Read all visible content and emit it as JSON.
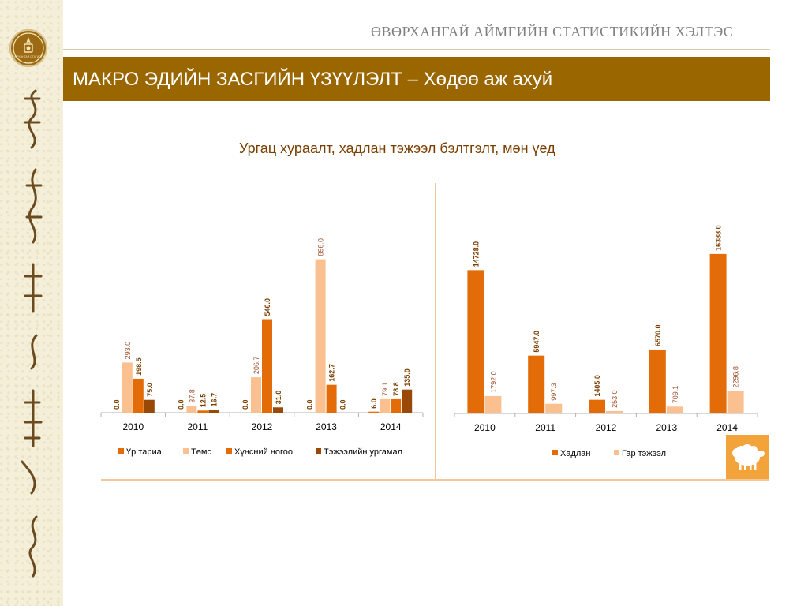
{
  "header": {
    "org_name": "ӨВӨРХАНГАЙ АЙМГИЙН СТАТИСТИКИЙН ХЭЛТЭС",
    "logo_text": "ӨВӨРХАНГАЙ СТАТИСТИК"
  },
  "title": "МАКРО ЭДИЙН ЗАСГИЙН ҮЗҮҮЛЭЛТ – Хөдөө аж ахуй",
  "chart_title": "Ургац хураалт, хадлан тэжээл бэлтгэлт, мөн үед",
  "colors": {
    "title_bar": "#996600",
    "chart_title": "#7a3e00",
    "accent": "#f2a33a"
  },
  "icons": [
    "emblem-icon",
    "sheep-icon"
  ],
  "chart_data": [
    {
      "type": "bar",
      "categories": [
        "2010",
        "2011",
        "2012",
        "2013",
        "2014"
      ],
      "series": [
        {
          "name": "Үр тариа",
          "color": "#e36c09",
          "values": [
            0.0,
            0.0,
            0.0,
            0.0,
            6.0
          ],
          "labels": [
            "0.0",
            "0.0",
            "0.0",
            "0.0",
            "6.0"
          ]
        },
        {
          "name": "Төмс",
          "color": "#fac090",
          "values": [
            293.0,
            37.8,
            206.7,
            896.0,
            79.1
          ],
          "labels": [
            "293.0",
            "37.8",
            "206.7",
            "896.0",
            "79.1"
          ]
        },
        {
          "name": "Хүнсний ногоо",
          "color": "#e36c09",
          "values": [
            198.5,
            12.5,
            546.0,
            162.7,
            78.8
          ],
          "labels": [
            "198.5",
            "12.5",
            "546.0",
            "162.7",
            "78.8"
          ]
        },
        {
          "name": "Тэжээлийн ургамал",
          "color": "#984807",
          "values": [
            75.0,
            16.7,
            31.0,
            0.0,
            135.0
          ],
          "labels": [
            "75.0",
            "16.7",
            "31.0",
            "0.0",
            "135.0"
          ]
        }
      ],
      "ylim": [
        0,
        1000
      ],
      "legend": "bottom"
    },
    {
      "type": "bar",
      "categories": [
        "2010",
        "2011",
        "2012",
        "2013",
        "2014"
      ],
      "series": [
        {
          "name": "Хадлан",
          "color": "#e36c09",
          "values": [
            14728.0,
            5947.0,
            1405.0,
            6570.0,
            16388.0
          ],
          "labels": [
            "14728.0",
            "5947.0",
            "1405.0",
            "6570.0",
            "16388.0"
          ]
        },
        {
          "name": "Гар тэжээл",
          "color": "#fac090",
          "values": [
            1792.0,
            997.3,
            253.0,
            709.1,
            2296.8
          ],
          "labels": [
            "1792.0",
            "997.3",
            "253.0",
            "709.1",
            "2296.8"
          ]
        }
      ],
      "ylim": [
        0,
        18000
      ],
      "legend": "bottom"
    }
  ]
}
